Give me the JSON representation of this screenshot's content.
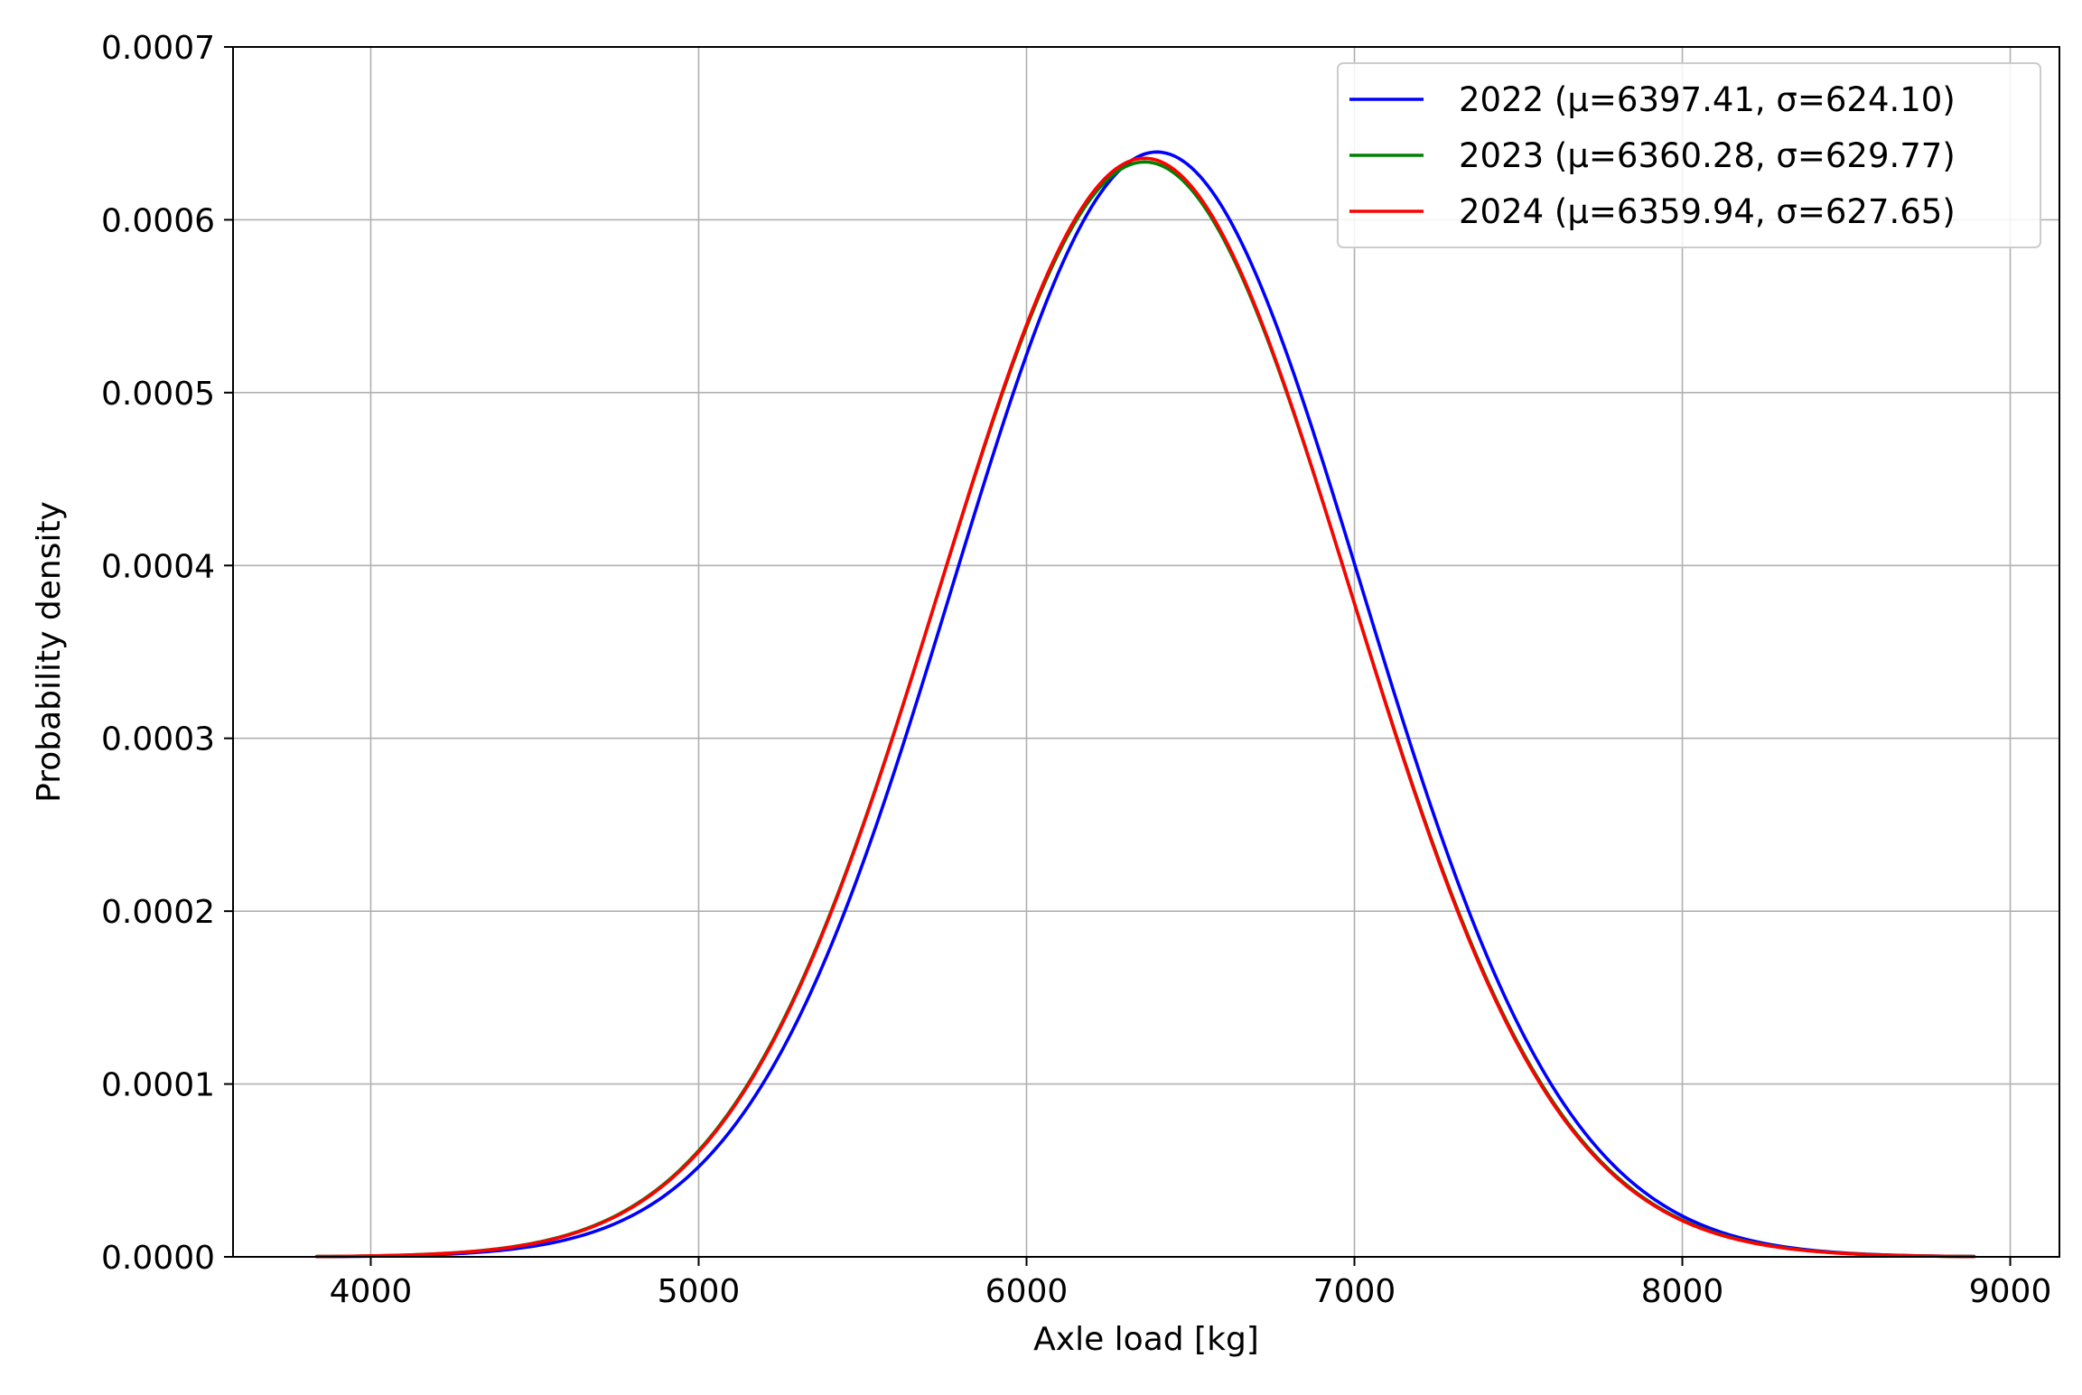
{
  "chart_data": {
    "type": "line",
    "title": "",
    "xlabel": "Axle load [kg]",
    "ylabel": "Probability density",
    "xlim": [
      3580,
      9150
    ],
    "ylim": [
      0,
      0.0007
    ],
    "x_ticks": [
      4000,
      5000,
      6000,
      7000,
      8000,
      9000
    ],
    "x_tick_labels": [
      "4000",
      "5000",
      "6000",
      "7000",
      "8000",
      "9000"
    ],
    "y_ticks": [
      0,
      0.0001,
      0.0002,
      0.0003,
      0.0004,
      0.0005,
      0.0006,
      0.0007
    ],
    "y_tick_labels": [
      "0.0000",
      "0.0001",
      "0.0002",
      "0.0003",
      "0.0004",
      "0.0005",
      "0.0006",
      "0.0007"
    ],
    "grid": true,
    "legend_position": "top-right",
    "x_range": [
      3835,
      8890
    ],
    "series": [
      {
        "name": "2022 (μ=6397.41, σ=624.10)",
        "mean": 6397.41,
        "std": 624.1,
        "color": "#0000ff",
        "peak_density": 0.000639
      },
      {
        "name": "2023 (μ=6360.28, σ=629.77)",
        "mean": 6360.28,
        "std": 629.77,
        "color": "#008000",
        "peak_density": 0.000633
      },
      {
        "name": "2024 (μ=6359.94, σ=627.65)",
        "mean": 6359.94,
        "std": 627.65,
        "color": "#ff0000",
        "peak_density": 0.000636
      }
    ]
  }
}
